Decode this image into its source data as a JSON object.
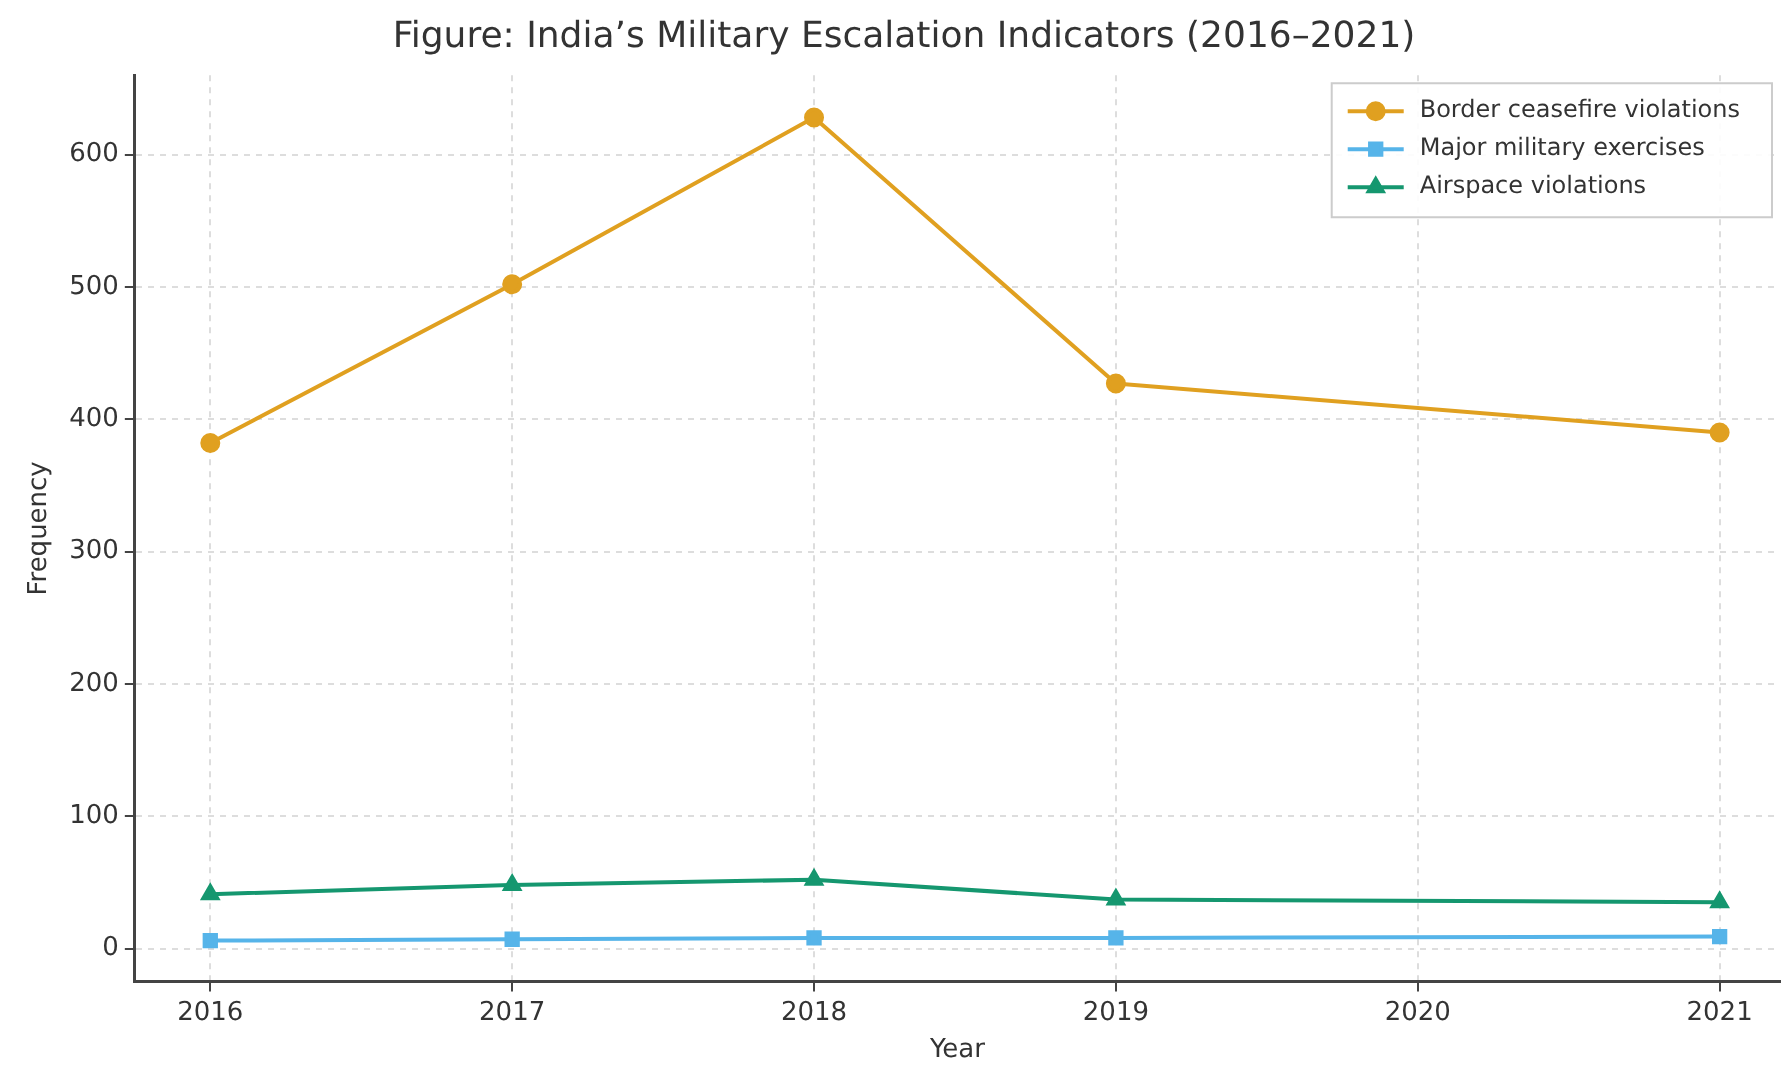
{
  "chart_data": {
    "type": "line",
    "title": "Figure: India’s Military Escalation Indicators (2016–2021)",
    "xlabel": "Year",
    "ylabel": "Frequency",
    "xlim": [
      2015.75,
      2021.2
    ],
    "xticks": [
      2016,
      2017,
      2018,
      2019,
      2020,
      2021
    ],
    "ylim": [
      -25,
      660
    ],
    "yticks": [
      0,
      100,
      200,
      300,
      400,
      500,
      600
    ],
    "grid": true,
    "legend": "top right",
    "series": [
      {
        "name": "Border ceasefire violations",
        "color": "#e0a020",
        "marker": "circle",
        "x": [
          2016,
          2017,
          2018,
          2019,
          2021
        ],
        "values": [
          382,
          502,
          628,
          427,
          390
        ]
      },
      {
        "name": "Major military exercises",
        "color": "#56b4e9",
        "marker": "square",
        "x": [
          2016,
          2017,
          2018,
          2019,
          2021
        ],
        "values": [
          6,
          7,
          8,
          8,
          9
        ]
      },
      {
        "name": "Airspace violations",
        "color": "#15976f",
        "marker": "triangle",
        "x": [
          2016,
          2017,
          2018,
          2019,
          2021
        ],
        "values": [
          41,
          48,
          52,
          37,
          35
        ]
      }
    ]
  }
}
